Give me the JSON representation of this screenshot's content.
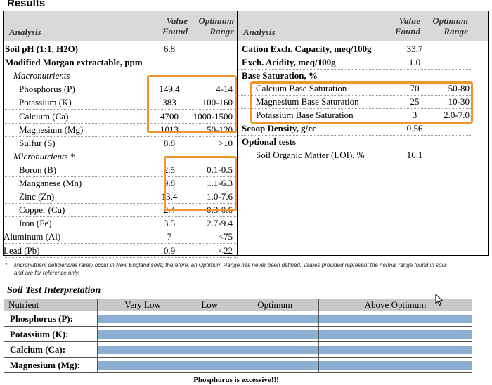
{
  "page": {
    "title": "Results"
  },
  "left_table": {
    "headers": {
      "analysis": "Analysis",
      "value_found": "Value Found",
      "optimum_range": "Optimum Range"
    },
    "rows": [
      {
        "label": "Soil pH (1:1, H2O)",
        "value": "6.8",
        "range": ""
      },
      {
        "label": "Modified Morgan extractable, ppm",
        "value": "",
        "range": ""
      },
      {
        "label": "Macronutrients",
        "value": "",
        "range": ""
      },
      {
        "label": "Phosphorus (P)",
        "value": "149.4",
        "range": "4-14"
      },
      {
        "label": "Potassium (K)",
        "value": "383",
        "range": "100-160"
      },
      {
        "label": "Calcium (Ca)",
        "value": "4700",
        "range": "1000-1500"
      },
      {
        "label": "Magnesium (Mg)",
        "value": "1013",
        "range": "50-120"
      },
      {
        "label": "Sulfur (S)",
        "value": "8.8",
        "range": ">10"
      },
      {
        "label": "Micronutrients *",
        "value": "",
        "range": ""
      },
      {
        "label": "Boron (B)",
        "value": "2.5",
        "range": "0.1-0.5"
      },
      {
        "label": "Manganese (Mn)",
        "value": "9.8",
        "range": "1.1-6.3"
      },
      {
        "label": "Zinc (Zn)",
        "value": "13.4",
        "range": "1.0-7.6"
      },
      {
        "label": "Copper (Cu)",
        "value": "2.4",
        "range": "0.3-0.6"
      },
      {
        "label": "Iron (Fe)",
        "value": "3.5",
        "range": "2.7-9.4"
      },
      {
        "label": "Aluminum (Al)",
        "value": "7",
        "range": "<75"
      },
      {
        "label": "Lead (Pb)",
        "value": "0.9",
        "range": "<22"
      }
    ]
  },
  "right_table": {
    "headers": {
      "analysis": "Analysis",
      "value_found": "Value Found",
      "optimum_range": "Optimum Range"
    },
    "rows": [
      {
        "label": "Cation Exch. Capacity, meq/100g",
        "value": "33.7",
        "range": ""
      },
      {
        "label": "Exch. Acidity, meq/100g",
        "value": "1.0",
        "range": ""
      },
      {
        "label": "Base Saturation, %",
        "value": "",
        "range": ""
      },
      {
        "label": "Calcium Base Saturation",
        "value": "70",
        "range": "50-80"
      },
      {
        "label": "Magnesium Base Saturation",
        "value": "25",
        "range": "10-30"
      },
      {
        "label": "Potassium Base Saturation",
        "value": "3",
        "range": "2.0-7.0"
      },
      {
        "label": "Scoop Density, g/cc",
        "value": "0.56",
        "range": ""
      },
      {
        "label": "Optional tests",
        "value": "",
        "range": ""
      },
      {
        "label": "Soil Organic Matter (LOI), %",
        "value": "16.1",
        "range": ""
      }
    ]
  },
  "footnote": {
    "star": "*",
    "text": "Micronutrient deficiencies rarely occur in New England soils; therefore, an Optimum Range has never been defined. Values provided represent the normal range found in soils and are for reference only."
  },
  "interpretation": {
    "title": "Soil Test Interpretation",
    "headers": [
      "Nutrient",
      "Very Low",
      "Low",
      "Optimum",
      "Above Optimum"
    ],
    "rows": [
      {
        "nutrient": "Phosphorus (P):",
        "level": 1.0
      },
      {
        "nutrient": "Potassium (K):",
        "level": 1.0
      },
      {
        "nutrient": "Calcium (Ca):",
        "level": 1.0
      },
      {
        "nutrient": "Magnesium (Mg):",
        "level": 1.0
      }
    ],
    "message": "Phosphorus is excessive!!!"
  },
  "colors": {
    "highlight": "#f0962e",
    "bar": "#8daed3",
    "header_bg": "#d9d9d9"
  }
}
